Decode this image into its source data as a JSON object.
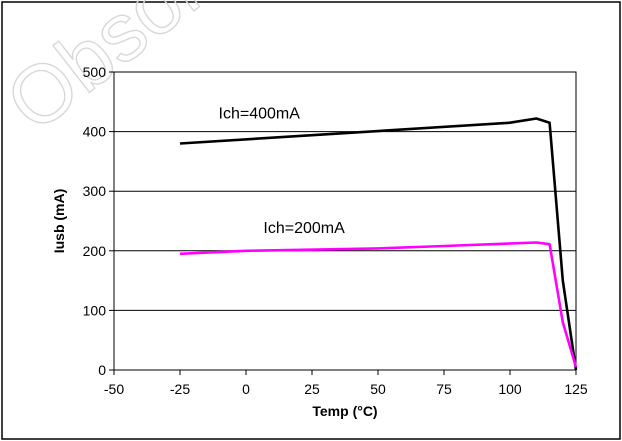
{
  "watermark": "Obsolete",
  "chart_data": {
    "type": "line",
    "xlabel": "Temp (°C)",
    "ylabel": "Iusb (mA)",
    "xlim": [
      -50,
      125
    ],
    "ylim": [
      0,
      500
    ],
    "x_ticks": [
      -50,
      -25,
      0,
      25,
      50,
      75,
      100,
      125
    ],
    "y_ticks": [
      0,
      100,
      200,
      300,
      400,
      500
    ],
    "grid": "horizontal",
    "series": [
      {
        "name": "Ich=400mA",
        "color": "#000000",
        "points": [
          [
            -25,
            380
          ],
          [
            100,
            415
          ],
          [
            110,
            422
          ],
          [
            115,
            415
          ],
          [
            120,
            150
          ],
          [
            125,
            0
          ]
        ]
      },
      {
        "name": "Ich=200mA",
        "color": "#ff00ff",
        "points": [
          [
            -25,
            195
          ],
          [
            0,
            200
          ],
          [
            50,
            204
          ],
          [
            75,
            208
          ],
          [
            110,
            214
          ],
          [
            115,
            211
          ],
          [
            120,
            80
          ],
          [
            125,
            5
          ]
        ]
      }
    ],
    "annotations": [
      {
        "text": "Ich=400mA",
        "x": 5,
        "y": 422
      },
      {
        "text": "Ich=200mA",
        "x": 22,
        "y": 230
      }
    ]
  }
}
